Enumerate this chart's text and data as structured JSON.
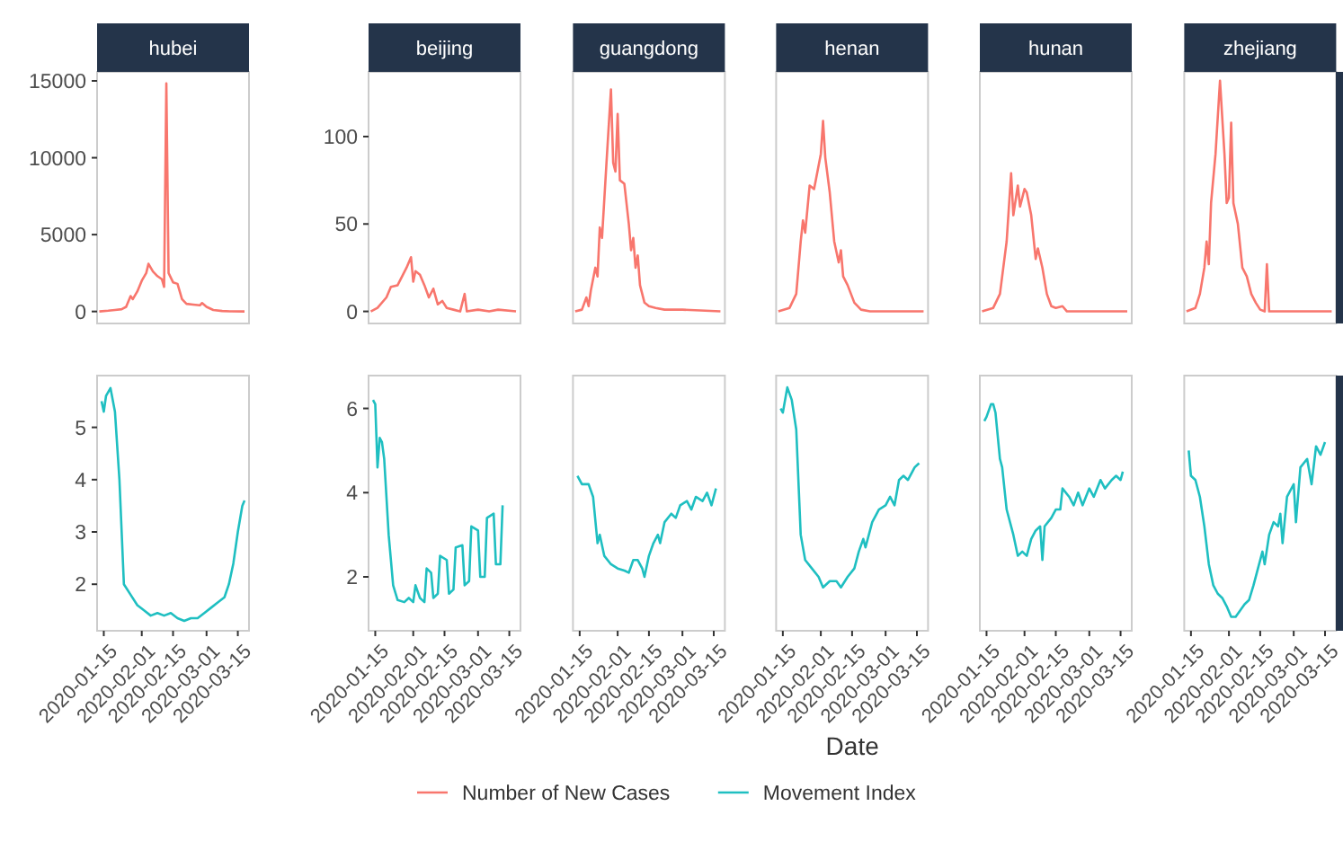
{
  "chart_data": [
    {
      "type": "line",
      "title": "hubei",
      "xlim": [
        "2020-01-12",
        "2020-03-20"
      ],
      "ylim": [
        -780,
        15585
      ],
      "yticks": [
        0,
        5000,
        10000,
        15000
      ],
      "tick_labels": "y",
      "legend": "bottom",
      "series": [
        {
          "name": "Number of New Cases",
          "color": "#f8766d",
          "x": [
            "2020-01-13",
            "2020-01-17",
            "2020-01-20",
            "2020-01-23",
            "2020-01-25",
            "2020-01-27",
            "2020-01-28",
            "2020-01-30",
            "2020-02-01",
            "2020-02-03",
            "2020-02-04",
            "2020-02-06",
            "2020-02-08",
            "2020-02-10",
            "2020-02-11",
            "2020-02-12",
            "2020-02-13",
            "2020-02-15",
            "2020-02-17",
            "2020-02-19",
            "2020-02-21",
            "2020-02-24",
            "2020-02-27",
            "2020-02-28",
            "2020-03-01",
            "2020-03-04",
            "2020-03-08",
            "2020-03-12",
            "2020-03-18"
          ],
          "values": [
            0,
            50,
            100,
            150,
            300,
            1000,
            800,
            1300,
            2000,
            2500,
            3100,
            2600,
            2300,
            2100,
            1600,
            14840,
            2500,
            1900,
            1800,
            800,
            500,
            450,
            400,
            550,
            300,
            100,
            30,
            5,
            0
          ]
        }
      ]
    },
    {
      "type": "line",
      "title": "beijing",
      "xlim": [
        "2020-01-12",
        "2020-03-20"
      ],
      "ylim": [
        -6.9,
        137
      ],
      "yticks": [
        0,
        50,
        100
      ],
      "tick_labels": "y",
      "series": [
        {
          "color": "#f8766d",
          "x": [
            "2020-01-13",
            "2020-01-16",
            "2020-01-20",
            "2020-01-22",
            "2020-01-25",
            "2020-01-27",
            "2020-01-29",
            "2020-01-31",
            "2020-02-01",
            "2020-02-02",
            "2020-02-04",
            "2020-02-06",
            "2020-02-08",
            "2020-02-10",
            "2020-02-12",
            "2020-02-14",
            "2020-02-16",
            "2020-02-19",
            "2020-02-22",
            "2020-02-24",
            "2020-02-25",
            "2020-03-01",
            "2020-03-06",
            "2020-03-10",
            "2020-03-18"
          ],
          "values": [
            0,
            2,
            8,
            14,
            15,
            20,
            25,
            31,
            17,
            23,
            21,
            15,
            8,
            13,
            4,
            6,
            2,
            1,
            0,
            10,
            0,
            1,
            0,
            1,
            0
          ]
        }
      ]
    },
    {
      "type": "line",
      "title": "guangdong",
      "xlim": [
        "2020-01-12",
        "2020-03-20"
      ],
      "ylim": [
        -6.9,
        137
      ],
      "tick_labels": false,
      "series": [
        {
          "color": "#f8766d",
          "x": [
            "2020-01-13",
            "2020-01-16",
            "2020-01-18",
            "2020-01-19",
            "2020-01-20",
            "2020-01-22",
            "2020-01-23",
            "2020-01-24",
            "2020-01-25",
            "2020-01-27",
            "2020-01-29",
            "2020-01-30",
            "2020-01-31",
            "2020-02-01",
            "2020-02-02",
            "2020-02-04",
            "2020-02-06",
            "2020-02-07",
            "2020-02-08",
            "2020-02-09",
            "2020-02-10",
            "2020-02-11",
            "2020-02-13",
            "2020-02-15",
            "2020-02-18",
            "2020-02-22",
            "2020-03-01",
            "2020-03-18"
          ],
          "values": [
            0,
            1,
            8,
            3,
            12,
            25,
            20,
            48,
            42,
            85,
            127,
            85,
            80,
            113,
            75,
            73,
            50,
            35,
            42,
            25,
            32,
            15,
            5,
            3,
            2,
            1,
            1,
            0
          ]
        }
      ]
    },
    {
      "type": "line",
      "title": "henan",
      "xlim": [
        "2020-01-12",
        "2020-03-20"
      ],
      "ylim": [
        -6.9,
        137
      ],
      "tick_labels": false,
      "series": [
        {
          "color": "#f8766d",
          "x": [
            "2020-01-13",
            "2020-01-18",
            "2020-01-21",
            "2020-01-23",
            "2020-01-24",
            "2020-01-25",
            "2020-01-27",
            "2020-01-29",
            "2020-02-01",
            "2020-02-02",
            "2020-02-03",
            "2020-02-05",
            "2020-02-07",
            "2020-02-09",
            "2020-02-10",
            "2020-02-11",
            "2020-02-13",
            "2020-02-16",
            "2020-02-19",
            "2020-02-23",
            "2020-03-18"
          ],
          "values": [
            0,
            2,
            10,
            40,
            52,
            45,
            72,
            70,
            90,
            109,
            88,
            68,
            40,
            28,
            35,
            20,
            15,
            5,
            1,
            0,
            0
          ]
        }
      ]
    },
    {
      "type": "line",
      "title": "hunan",
      "xlim": [
        "2020-01-12",
        "2020-03-20"
      ],
      "ylim": [
        -6.9,
        137
      ],
      "tick_labels": false,
      "series": [
        {
          "color": "#f8766d",
          "x": [
            "2020-01-13",
            "2020-01-18",
            "2020-01-21",
            "2020-01-23",
            "2020-01-24",
            "2020-01-26",
            "2020-01-27",
            "2020-01-29",
            "2020-01-30",
            "2020-02-01",
            "2020-02-02",
            "2020-02-04",
            "2020-02-06",
            "2020-02-07",
            "2020-02-09",
            "2020-02-11",
            "2020-02-13",
            "2020-02-15",
            "2020-02-18",
            "2020-02-20",
            "2020-03-18"
          ],
          "values": [
            0,
            2,
            10,
            30,
            40,
            79,
            55,
            72,
            60,
            70,
            68,
            55,
            30,
            36,
            25,
            10,
            3,
            2,
            3,
            0,
            0
          ]
        }
      ]
    },
    {
      "type": "line",
      "title": "zhejiang",
      "xlim": [
        "2020-01-12",
        "2020-03-20"
      ],
      "ylim": [
        -6.9,
        137
      ],
      "tick_labels": false,
      "series": [
        {
          "color": "#f8766d",
          "x": [
            "2020-01-13",
            "2020-01-17",
            "2020-01-19",
            "2020-01-21",
            "2020-01-22",
            "2020-01-23",
            "2020-01-24",
            "2020-01-26",
            "2020-01-28",
            "2020-01-30",
            "2020-01-31",
            "2020-02-01",
            "2020-02-02",
            "2020-02-03",
            "2020-02-05",
            "2020-02-07",
            "2020-02-09",
            "2020-02-11",
            "2020-02-13",
            "2020-02-15",
            "2020-02-17",
            "2020-02-18",
            "2020-02-19",
            "2020-03-18"
          ],
          "values": [
            0,
            2,
            10,
            25,
            40,
            27,
            62,
            90,
            132,
            90,
            62,
            65,
            108,
            62,
            50,
            25,
            20,
            10,
            5,
            1,
            0,
            27,
            0,
            0
          ]
        }
      ]
    },
    {
      "type": "line",
      "xlim": [
        "2020-01-12",
        "2020-03-20"
      ],
      "xticks": [
        "2020-01-15",
        "2020-02-01",
        "2020-02-15",
        "2020-03-01",
        "2020-03-15"
      ],
      "ylim": [
        1.11,
        5.99
      ],
      "yticks": [
        2,
        3,
        4,
        5
      ],
      "legend": "bottom",
      "series": [
        {
          "name": "Movement Index",
          "color": "#1fbfc1",
          "x": [
            "2020-01-14",
            "2020-01-15",
            "2020-01-16",
            "2020-01-18",
            "2020-01-20",
            "2020-01-22",
            "2020-01-24",
            "2020-01-27",
            "2020-01-30",
            "2020-02-02",
            "2020-02-05",
            "2020-02-08",
            "2020-02-11",
            "2020-02-14",
            "2020-02-17",
            "2020-02-20",
            "2020-02-23",
            "2020-02-26",
            "2020-02-29",
            "2020-03-03",
            "2020-03-06",
            "2020-03-09",
            "2020-03-11",
            "2020-03-13",
            "2020-03-15",
            "2020-03-17",
            "2020-03-18"
          ],
          "values": [
            5.5,
            5.3,
            5.6,
            5.75,
            5.3,
            4.0,
            2.0,
            1.8,
            1.6,
            1.5,
            1.4,
            1.45,
            1.4,
            1.45,
            1.35,
            1.3,
            1.35,
            1.35,
            1.45,
            1.55,
            1.65,
            1.75,
            2.0,
            2.4,
            3.0,
            3.5,
            3.6
          ]
        }
      ]
    },
    {
      "type": "line",
      "xlim": [
        "2020-01-12",
        "2020-03-20"
      ],
      "xticks": [
        "2020-01-15",
        "2020-02-01",
        "2020-02-15",
        "2020-03-01",
        "2020-03-15"
      ],
      "ylim": [
        0.72,
        6.78
      ],
      "yticks": [
        2,
        4,
        6
      ],
      "series": [
        {
          "color": "#1fbfc1",
          "x": [
            "2020-01-14",
            "2020-01-15",
            "2020-01-16",
            "2020-01-17",
            "2020-01-18",
            "2020-01-19",
            "2020-01-21",
            "2020-01-23",
            "2020-01-25",
            "2020-01-28",
            "2020-01-30",
            "2020-02-01",
            "2020-02-02",
            "2020-02-04",
            "2020-02-06",
            "2020-02-07",
            "2020-02-09",
            "2020-02-10",
            "2020-02-12",
            "2020-02-13",
            "2020-02-16",
            "2020-02-17",
            "2020-02-19",
            "2020-02-20",
            "2020-02-23",
            "2020-02-24",
            "2020-02-26",
            "2020-02-27",
            "2020-03-01",
            "2020-03-02",
            "2020-03-04",
            "2020-03-05",
            "2020-03-08",
            "2020-03-09",
            "2020-03-11",
            "2020-03-12"
          ],
          "values": [
            6.2,
            6.1,
            4.6,
            5.3,
            5.2,
            4.8,
            3.0,
            1.8,
            1.45,
            1.4,
            1.5,
            1.4,
            1.8,
            1.5,
            1.4,
            2.2,
            2.1,
            1.5,
            1.6,
            2.5,
            2.4,
            1.6,
            1.7,
            2.7,
            2.75,
            1.8,
            1.9,
            3.2,
            3.1,
            2.0,
            2.0,
            3.4,
            3.5,
            2.3,
            2.3,
            3.7
          ]
        }
      ]
    },
    {
      "type": "line",
      "xlabel": "Date",
      "xlim": [
        "2020-01-12",
        "2020-03-20"
      ],
      "xticks": [
        "2020-01-15",
        "2020-02-01",
        "2020-02-15",
        "2020-03-01",
        "2020-03-15"
      ],
      "ylim": [
        0.72,
        6.78
      ],
      "tick_labels": "x",
      "series": [
        {
          "color": "#1fbfc1",
          "x": [
            "2020-01-14",
            "2020-01-16",
            "2020-01-19",
            "2020-01-21",
            "2020-01-23",
            "2020-01-24",
            "2020-01-26",
            "2020-01-29",
            "2020-02-01",
            "2020-02-04",
            "2020-02-06",
            "2020-02-08",
            "2020-02-10",
            "2020-02-12",
            "2020-02-13",
            "2020-02-15",
            "2020-02-17",
            "2020-02-19",
            "2020-02-20",
            "2020-02-22",
            "2020-02-25",
            "2020-02-27",
            "2020-02-29",
            "2020-03-03",
            "2020-03-05",
            "2020-03-07",
            "2020-03-10",
            "2020-03-12",
            "2020-03-14",
            "2020-03-16"
          ],
          "values": [
            4.4,
            4.2,
            4.2,
            3.9,
            2.8,
            3.0,
            2.5,
            2.3,
            2.2,
            2.15,
            2.1,
            2.4,
            2.4,
            2.2,
            2.0,
            2.5,
            2.8,
            3.0,
            2.8,
            3.3,
            3.5,
            3.4,
            3.7,
            3.8,
            3.6,
            3.9,
            3.8,
            4.0,
            3.7,
            4.1
          ]
        }
      ]
    },
    {
      "type": "line",
      "xlim": [
        "2020-01-12",
        "2020-03-20"
      ],
      "xticks": [
        "2020-01-15",
        "2020-02-01",
        "2020-02-15",
        "2020-03-01",
        "2020-03-15"
      ],
      "ylim": [
        0.72,
        6.78
      ],
      "tick_labels": "x",
      "series": [
        {
          "color": "#1fbfc1",
          "x": [
            "2020-01-14",
            "2020-01-15",
            "2020-01-17",
            "2020-01-19",
            "2020-01-21",
            "2020-01-23",
            "2020-01-25",
            "2020-01-28",
            "2020-01-31",
            "2020-02-02",
            "2020-02-05",
            "2020-02-08",
            "2020-02-10",
            "2020-02-13",
            "2020-02-16",
            "2020-02-18",
            "2020-02-20",
            "2020-02-21",
            "2020-02-24",
            "2020-02-27",
            "2020-03-01",
            "2020-03-03",
            "2020-03-05",
            "2020-03-07",
            "2020-03-09",
            "2020-03-11",
            "2020-03-14",
            "2020-03-16"
          ],
          "values": [
            6.0,
            5.9,
            6.5,
            6.2,
            5.5,
            3.0,
            2.4,
            2.2,
            2.0,
            1.75,
            1.9,
            1.9,
            1.75,
            2.0,
            2.2,
            2.6,
            2.9,
            2.7,
            3.3,
            3.6,
            3.7,
            3.9,
            3.7,
            4.3,
            4.4,
            4.3,
            4.6,
            4.7
          ]
        }
      ]
    },
    {
      "type": "line",
      "xlim": [
        "2020-01-12",
        "2020-03-20"
      ],
      "xticks": [
        "2020-01-15",
        "2020-02-01",
        "2020-02-15",
        "2020-03-01",
        "2020-03-15"
      ],
      "ylim": [
        0.72,
        6.78
      ],
      "tick_labels": "x",
      "series": [
        {
          "color": "#1fbfc1",
          "x": [
            "2020-01-14",
            "2020-01-15",
            "2020-01-17",
            "2020-01-18",
            "2020-01-19",
            "2020-01-21",
            "2020-01-22",
            "2020-01-24",
            "2020-01-27",
            "2020-01-29",
            "2020-01-31",
            "2020-02-02",
            "2020-02-04",
            "2020-02-06",
            "2020-02-08",
            "2020-02-09",
            "2020-02-10",
            "2020-02-13",
            "2020-02-15",
            "2020-02-17",
            "2020-02-18",
            "2020-02-21",
            "2020-02-23",
            "2020-02-25",
            "2020-02-27",
            "2020-03-01",
            "2020-03-03",
            "2020-03-06",
            "2020-03-08",
            "2020-03-11",
            "2020-03-13",
            "2020-03-15",
            "2020-03-16"
          ],
          "values": [
            5.7,
            5.8,
            6.1,
            6.1,
            5.9,
            4.8,
            4.6,
            3.6,
            3.0,
            2.5,
            2.6,
            2.5,
            2.9,
            3.1,
            3.2,
            2.4,
            3.2,
            3.4,
            3.6,
            3.6,
            4.1,
            3.9,
            3.7,
            4.0,
            3.7,
            4.1,
            3.9,
            4.3,
            4.1,
            4.3,
            4.4,
            4.3,
            4.5
          ]
        }
      ]
    },
    {
      "type": "line",
      "xlim": [
        "2020-01-12",
        "2020-03-20"
      ],
      "xticks": [
        "2020-01-15",
        "2020-02-01",
        "2020-02-15",
        "2020-03-01",
        "2020-03-15"
      ],
      "ylim": [
        0.72,
        6.78
      ],
      "tick_labels": "x",
      "series": [
        {
          "color": "#1fbfc1",
          "x": [
            "2020-01-14",
            "2020-01-15",
            "2020-01-17",
            "2020-01-19",
            "2020-01-21",
            "2020-01-23",
            "2020-01-25",
            "2020-01-27",
            "2020-01-29",
            "2020-01-31",
            "2020-02-02",
            "2020-02-04",
            "2020-02-06",
            "2020-02-08",
            "2020-02-10",
            "2020-02-12",
            "2020-02-14",
            "2020-02-16",
            "2020-02-17",
            "2020-02-19",
            "2020-02-21",
            "2020-02-23",
            "2020-02-24",
            "2020-02-25",
            "2020-02-27",
            "2020-03-01",
            "2020-03-02",
            "2020-03-04",
            "2020-03-07",
            "2020-03-09",
            "2020-03-11",
            "2020-03-13",
            "2020-03-15"
          ],
          "values": [
            5.0,
            4.4,
            4.3,
            3.9,
            3.2,
            2.3,
            1.8,
            1.6,
            1.5,
            1.3,
            1.05,
            1.05,
            1.2,
            1.35,
            1.45,
            1.8,
            2.2,
            2.6,
            2.3,
            3.0,
            3.3,
            3.2,
            3.5,
            2.8,
            3.9,
            4.2,
            3.3,
            4.6,
            4.8,
            4.2,
            5.1,
            4.9,
            5.2
          ]
        }
      ]
    }
  ]
}
